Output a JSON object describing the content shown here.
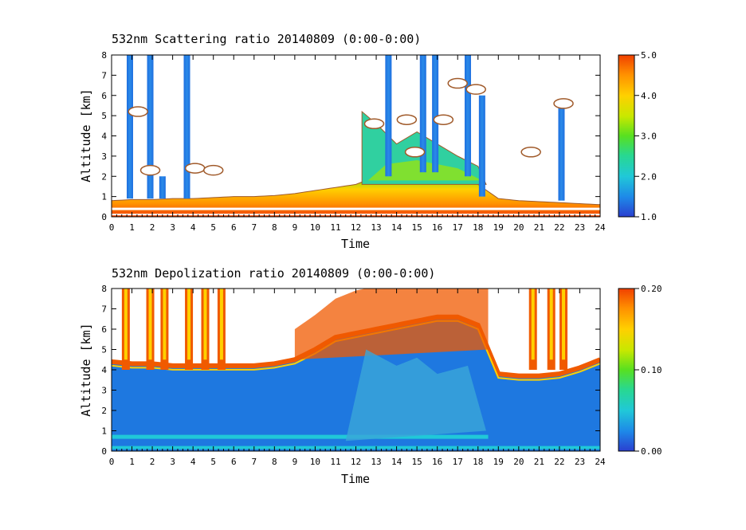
{
  "colors": {
    "scale": [
      "#2a3fd0",
      "#1e88e8",
      "#20c8d8",
      "#28d890",
      "#58e020",
      "#c8e800",
      "#ffd000",
      "#ff9000",
      "#f04000"
    ],
    "cloud_contour": "#a05a2a",
    "cloud_fill": "#ffffff"
  },
  "chart_data": [
    {
      "type": "heatmap",
      "title": "532nm Scattering ratio  20140809 (0:00-0:00)",
      "xlabel": "Time",
      "ylabel": "Altitude [km]",
      "xlim": [
        0,
        24
      ],
      "ylim": [
        0,
        8
      ],
      "xticks": [
        "0",
        "1",
        "2",
        "3",
        "4",
        "5",
        "6",
        "7",
        "8",
        "9",
        "10",
        "11",
        "12",
        "13",
        "14",
        "15",
        "16",
        "17",
        "18",
        "19",
        "20",
        "21",
        "22",
        "23",
        "24"
      ],
      "yticks": [
        "0",
        "1",
        "2",
        "3",
        "4",
        "5",
        "6",
        "7",
        "8"
      ],
      "colorbar": {
        "min": 1.0,
        "max": 5.0,
        "ticks": [
          "1.0",
          "2.0",
          "3.0",
          "4.0",
          "5.0"
        ]
      },
      "boundary_layer_top_km": [
        [
          0,
          0.8
        ],
        [
          1,
          0.85
        ],
        [
          2,
          0.85
        ],
        [
          3,
          0.9
        ],
        [
          4,
          0.9
        ],
        [
          5,
          0.95
        ],
        [
          6,
          1.0
        ],
        [
          7,
          1.0
        ],
        [
          8,
          1.05
        ],
        [
          9,
          1.15
        ],
        [
          10,
          1.3
        ],
        [
          11,
          1.45
        ],
        [
          12,
          1.6
        ],
        [
          13,
          2.0
        ],
        [
          14,
          2.1
        ],
        [
          15,
          2.1
        ],
        [
          16,
          2.0
        ],
        [
          17,
          1.9
        ],
        [
          18,
          1.6
        ],
        [
          19,
          0.9
        ],
        [
          20,
          0.8
        ],
        [
          21,
          0.75
        ],
        [
          22,
          0.7
        ],
        [
          23,
          0.65
        ],
        [
          24,
          0.6
        ]
      ],
      "cloud_columns": [
        {
          "time": 0.9,
          "base_km": 0.9,
          "top_km": 8
        },
        {
          "time": 1.9,
          "base_km": 0.9,
          "top_km": 8
        },
        {
          "time": 2.5,
          "base_km": 0.9,
          "top_km": 2.0
        },
        {
          "time": 3.7,
          "base_km": 0.9,
          "top_km": 8
        },
        {
          "time": 13.6,
          "base_km": 2.0,
          "top_km": 8
        },
        {
          "time": 15.3,
          "base_km": 2.2,
          "top_km": 8
        },
        {
          "time": 15.9,
          "base_km": 2.2,
          "top_km": 8
        },
        {
          "time": 17.5,
          "base_km": 2.0,
          "top_km": 8
        },
        {
          "time": 18.2,
          "base_km": 1.0,
          "top_km": 6.0
        },
        {
          "time": 22.1,
          "base_km": 0.8,
          "top_km": 5.8
        }
      ],
      "cloud_patches": [
        {
          "time": 1.3,
          "alt_km": 5.2
        },
        {
          "time": 1.9,
          "alt_km": 2.3
        },
        {
          "time": 4.1,
          "alt_km": 2.4
        },
        {
          "time": 5.0,
          "alt_km": 2.3
        },
        {
          "time": 12.9,
          "alt_km": 4.6
        },
        {
          "time": 14.5,
          "alt_km": 4.8
        },
        {
          "time": 14.9,
          "alt_km": 3.2
        },
        {
          "time": 16.3,
          "alt_km": 4.8
        },
        {
          "time": 17.0,
          "alt_km": 6.6
        },
        {
          "time": 17.9,
          "alt_km": 6.3
        },
        {
          "time": 20.6,
          "alt_km": 3.2
        },
        {
          "time": 22.2,
          "alt_km": 5.6
        }
      ]
    },
    {
      "type": "heatmap",
      "title": "532nm Depolization ratio  20140809 (0:00-0:00)",
      "xlabel": "Time",
      "ylabel": "Altitude [km]",
      "xlim": [
        0,
        24
      ],
      "ylim": [
        0,
        8
      ],
      "xticks": [
        "0",
        "1",
        "2",
        "3",
        "4",
        "5",
        "6",
        "7",
        "8",
        "9",
        "10",
        "11",
        "12",
        "13",
        "14",
        "15",
        "16",
        "17",
        "18",
        "19",
        "20",
        "21",
        "22",
        "23",
        "24"
      ],
      "yticks": [
        "0",
        "1",
        "2",
        "3",
        "4",
        "5",
        "6",
        "7",
        "8"
      ],
      "colorbar": {
        "min": 0.0,
        "max": 0.2,
        "ticks": [
          "0.00",
          "0.10",
          "0.20"
        ]
      },
      "signal_top_km": [
        [
          0,
          4.4
        ],
        [
          1,
          4.3
        ],
        [
          2,
          4.3
        ],
        [
          3,
          4.2
        ],
        [
          4,
          4.2
        ],
        [
          5,
          4.2
        ],
        [
          6,
          4.2
        ],
        [
          7,
          4.2
        ],
        [
          8,
          4.3
        ],
        [
          9,
          4.5
        ],
        [
          10,
          5.0
        ],
        [
          11,
          5.6
        ],
        [
          12,
          5.8
        ],
        [
          13,
          6.0
        ],
        [
          14,
          6.2
        ],
        [
          15,
          6.4
        ],
        [
          16,
          6.6
        ],
        [
          17,
          6.6
        ],
        [
          18,
          6.2
        ],
        [
          19,
          3.8
        ],
        [
          20,
          3.7
        ],
        [
          21,
          3.7
        ],
        [
          22,
          3.8
        ],
        [
          23,
          4.1
        ],
        [
          24,
          4.5
        ]
      ],
      "high_depol_columns": [
        {
          "time": 0.7
        },
        {
          "time": 1.9
        },
        {
          "time": 2.6
        },
        {
          "time": 3.8
        },
        {
          "time": 4.6
        },
        {
          "time": 5.4
        },
        {
          "time": 20.7
        },
        {
          "time": 21.6
        },
        {
          "time": 22.2
        }
      ]
    }
  ]
}
